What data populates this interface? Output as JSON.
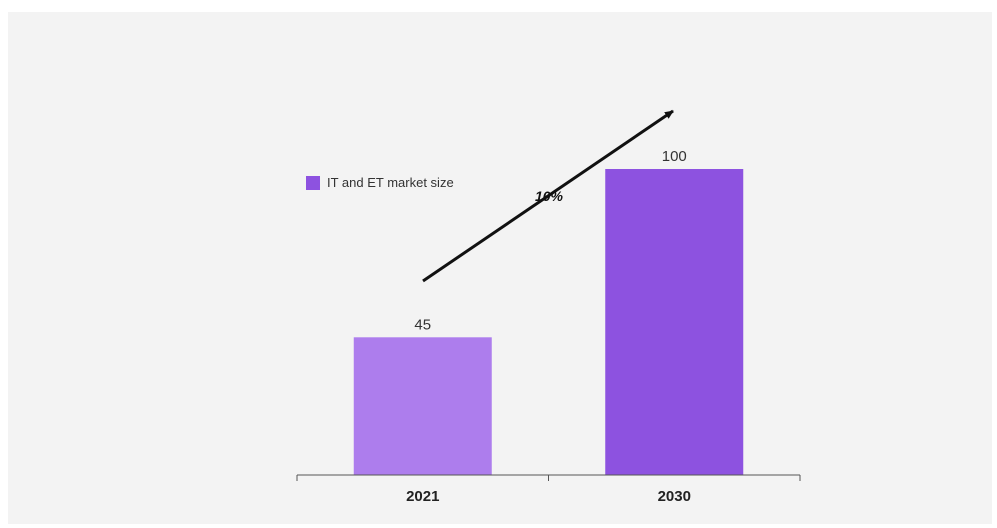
{
  "chart_data": {
    "type": "bar",
    "title": "",
    "xlabel": "",
    "ylabel": "",
    "categories": [
      "2021",
      "2030"
    ],
    "series": [
      {
        "name": "IT and ET market size",
        "values": [
          45,
          100
        ],
        "data_labels": [
          "45",
          "100"
        ],
        "colors": [
          "#ad7ded",
          "#8d52e0"
        ]
      }
    ],
    "ylim": [
      0,
      100
    ],
    "grid": false,
    "legend": "top-left",
    "annotations": [
      {
        "type": "arrow",
        "label": "10%",
        "direction": "up-right"
      }
    ]
  }
}
